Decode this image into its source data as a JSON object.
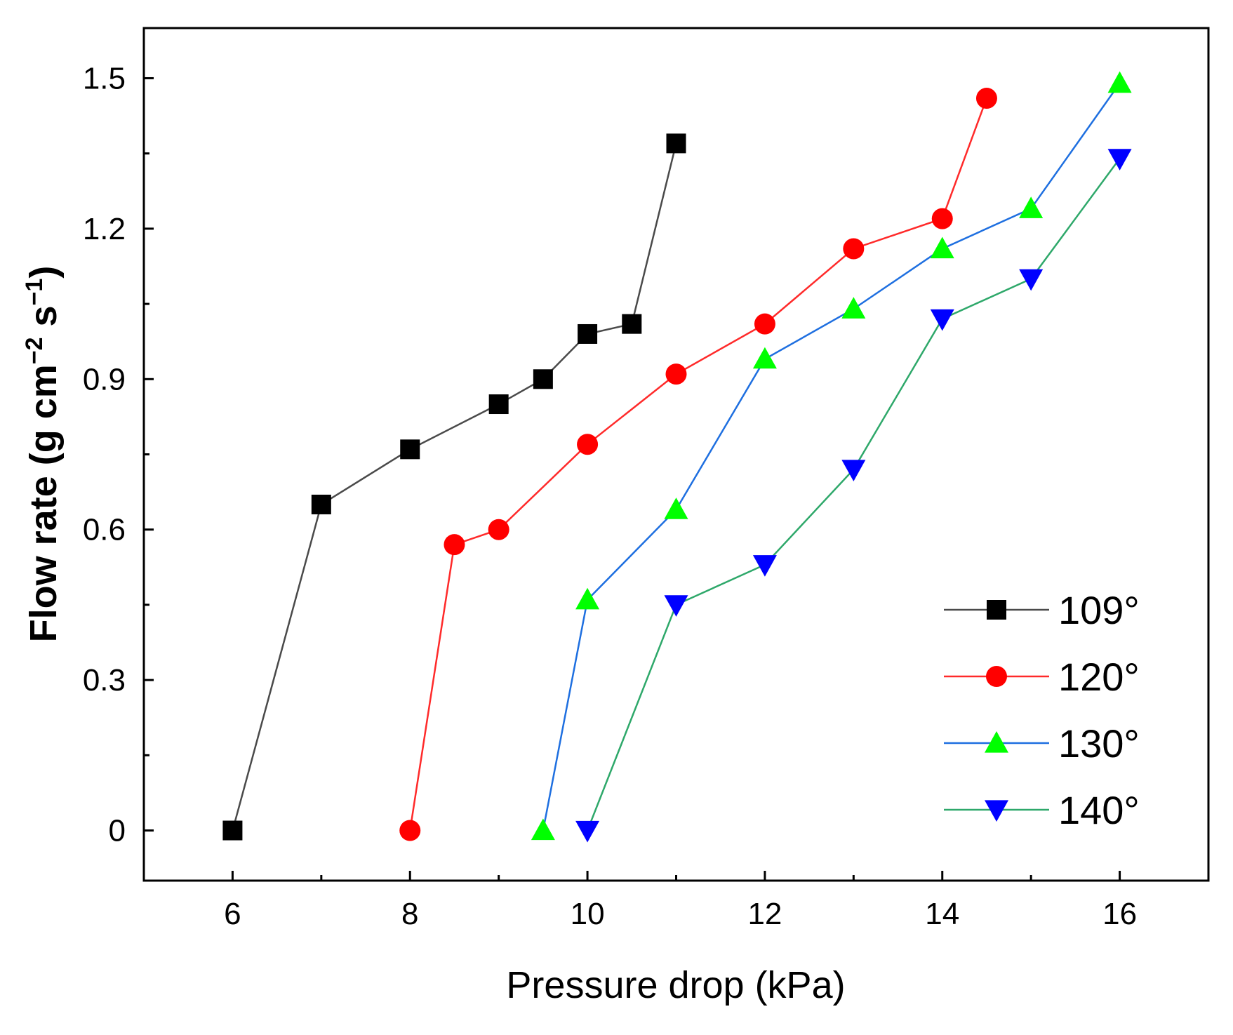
{
  "chart_data": {
    "type": "line",
    "title": "",
    "xlabel": "Pressure drop (kPa)",
    "ylabel_parts": {
      "base": "Flow rate (g cm",
      "exp1": "−2",
      "mid": " s",
      "exp2": "−1",
      "end": ")"
    },
    "xlim": [
      5,
      17
    ],
    "ylim": [
      -0.1,
      1.6
    ],
    "xticks": [
      6,
      8,
      10,
      12,
      14,
      16
    ],
    "yticks": [
      0,
      0.3,
      0.6,
      0.9,
      1.2,
      1.5
    ],
    "ytick_labels": [
      "0",
      "0.3",
      "0.6",
      "0.9",
      "1.2",
      "1.5"
    ],
    "legend_position": "bottom-right",
    "series": [
      {
        "name": "109°",
        "marker": "square",
        "line_color": "#4a4a4a",
        "marker_color": "#000000",
        "x": [
          6,
          7,
          8,
          9,
          9.5,
          10,
          10.5,
          11
        ],
        "y": [
          0.0,
          0.65,
          0.76,
          0.85,
          0.9,
          0.99,
          1.01,
          1.37
        ]
      },
      {
        "name": "120°",
        "marker": "circle",
        "line_color": "#ff2a2a",
        "marker_color": "#ff0000",
        "x": [
          8,
          8.5,
          9,
          10,
          11,
          12,
          13,
          14,
          14.5
        ],
        "y": [
          0.0,
          0.57,
          0.6,
          0.77,
          0.91,
          1.01,
          1.16,
          1.22,
          1.46
        ]
      },
      {
        "name": "130°",
        "marker": "triangle-up",
        "line_color": "#1e6fe0",
        "marker_color": "#00ff00",
        "x": [
          9.5,
          10,
          11,
          12,
          13,
          14,
          15,
          16
        ],
        "y": [
          0.0,
          0.46,
          0.64,
          0.94,
          1.04,
          1.16,
          1.24,
          1.49
        ]
      },
      {
        "name": "140°",
        "marker": "triangle-down",
        "line_color": "#2ea86a",
        "marker_color": "#0000ff",
        "x": [
          10,
          11,
          12,
          13,
          14,
          15,
          16
        ],
        "y": [
          0.0,
          0.45,
          0.53,
          0.72,
          1.02,
          1.1,
          1.34
        ]
      }
    ]
  }
}
